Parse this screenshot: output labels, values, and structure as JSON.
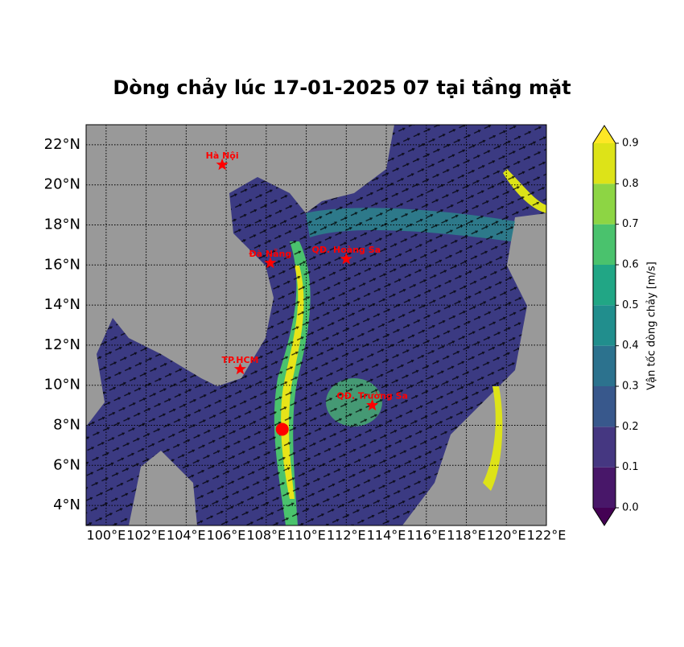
{
  "chart_data": {
    "type": "map",
    "title": "Dòng chảy lúc 17-01-2025 07 tại tầng mặt",
    "xlim": [
      99,
      122
    ],
    "ylim": [
      3,
      23
    ],
    "xticks": [
      {
        "value": 100,
        "label": "100°E"
      },
      {
        "value": 102,
        "label": "102°E"
      },
      {
        "value": 104,
        "label": "104°E"
      },
      {
        "value": 106,
        "label": "106°E"
      },
      {
        "value": 108,
        "label": "108°E"
      },
      {
        "value": 110,
        "label": "110°E"
      },
      {
        "value": 112,
        "label": "112°E"
      },
      {
        "value": 114,
        "label": "114°E"
      },
      {
        "value": 116,
        "label": "116°E"
      },
      {
        "value": 118,
        "label": "118°E"
      },
      {
        "value": 120,
        "label": "120°E"
      },
      {
        "value": 122,
        "label": "122°E"
      }
    ],
    "yticks": [
      {
        "value": 4,
        "label": "4°N"
      },
      {
        "value": 6,
        "label": "6°N"
      },
      {
        "value": 8,
        "label": "8°N"
      },
      {
        "value": 10,
        "label": "10°N"
      },
      {
        "value": 12,
        "label": "12°N"
      },
      {
        "value": 14,
        "label": "14°N"
      },
      {
        "value": 16,
        "label": "16°N"
      },
      {
        "value": 18,
        "label": "18°N"
      },
      {
        "value": 20,
        "label": "20°N"
      },
      {
        "value": 22,
        "label": "22°N"
      }
    ],
    "grid": true,
    "points": [
      {
        "name": "Hà Nội",
        "lon": 105.8,
        "lat": 21.0
      },
      {
        "name": "Đà Nẵng",
        "lon": 108.2,
        "lat": 16.1
      },
      {
        "name": "QĐ. Hoàng Sa",
        "lon": 112.0,
        "lat": 16.3
      },
      {
        "name": "TP.HCM",
        "lon": 106.7,
        "lat": 10.8
      },
      {
        "name": "QĐ. Trường Sa",
        "lon": 113.3,
        "lat": 9.0
      }
    ],
    "marker_color": "#ff0000",
    "dot": {
      "lon": 108.8,
      "lat": 7.8,
      "color": "#ff0000"
    },
    "colorbar": {
      "label": "Vận tốc dòng chảy [m/s]",
      "lim": [
        0,
        0.9
      ],
      "ticks": [
        0.0,
        0.1,
        0.2,
        0.3,
        0.4,
        0.5,
        0.6,
        0.7,
        0.8,
        0.9
      ],
      "tick_labels": [
        "0.0",
        "0.1",
        "0.2",
        "0.3",
        "0.4",
        "0.5",
        "0.6",
        "0.7",
        "0.8",
        "0.9"
      ],
      "colors": [
        "#481769",
        "#453781",
        "#38588c",
        "#2c728e",
        "#218e8d",
        "#21a685",
        "#4ac26d",
        "#8dd544",
        "#dde318"
      ],
      "extend_colors": [
        "#440154",
        "#fde725"
      ]
    }
  }
}
